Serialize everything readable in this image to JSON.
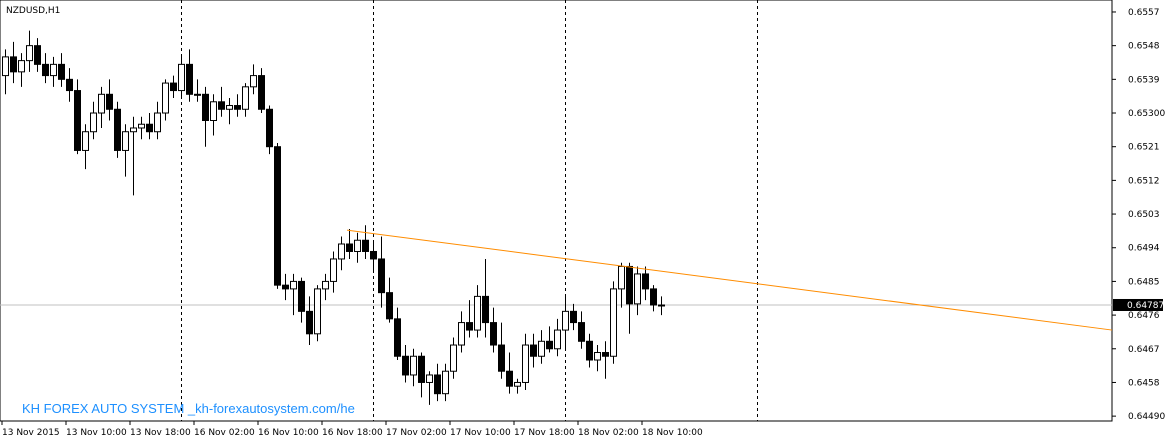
{
  "chart_data": {
    "type": "candlestick",
    "title": "NZDUSD,H1",
    "categories": [
      "13 Nov 2015",
      null,
      null,
      null,
      null,
      null,
      null,
      null,
      "13 Nov 10:00",
      null,
      null,
      null,
      null,
      null,
      null,
      null,
      "13 Nov 18:00",
      null,
      null,
      null,
      null,
      null,
      null,
      null,
      "16 Nov 02:00",
      null,
      null,
      null,
      null,
      null,
      null,
      null,
      "16 Nov 10:00",
      null,
      null,
      null,
      null,
      null,
      null,
      null,
      "16 Nov 18:00",
      null,
      null,
      null,
      null,
      null,
      null,
      null,
      "17 Nov 02:00",
      null,
      null,
      null,
      null,
      null,
      null,
      null,
      "17 Nov 10:00",
      null,
      null,
      null,
      null,
      null,
      null,
      null,
      "17 Nov 18:00",
      null,
      null,
      null,
      null,
      null,
      null,
      null,
      "18 Nov 02:00",
      null,
      null,
      null,
      null,
      null,
      null,
      null,
      "18 Nov 10:00",
      null,
      null
    ],
    "open": [
      0.654,
      0.6545,
      0.6541,
      0.6544,
      0.6548,
      0.6543,
      0.654,
      0.6543,
      0.6539,
      0.6536,
      0.652,
      0.6525,
      0.653,
      0.6535,
      0.6531,
      0.652,
      0.6525,
      0.6526,
      0.6527,
      0.6525,
      0.653,
      0.6538,
      0.6536,
      0.6543,
      0.6535,
      0.6535,
      0.6528,
      0.6533,
      0.6531,
      0.6532,
      0.6531,
      0.6537,
      0.654,
      0.6531,
      0.6521,
      0.6484,
      0.6483,
      0.6485,
      0.6477,
      0.6471,
      0.6483,
      0.6485,
      0.6491,
      0.6495,
      0.6493,
      0.6496,
      0.6493,
      0.6491,
      0.6482,
      0.6475,
      0.6465,
      0.646,
      0.6465,
      0.6458,
      0.646,
      0.6455,
      0.6461,
      0.6468,
      0.6474,
      0.6472,
      0.6481,
      0.6474,
      0.6468,
      0.6461,
      0.6457,
      0.6458,
      0.6468,
      0.6465,
      0.6469,
      0.6467,
      0.6472,
      0.6477,
      0.6474,
      0.6469,
      0.6464,
      0.6466,
      0.6465,
      0.6483,
      0.6489,
      0.6479,
      0.6487,
      0.6483,
      0.64787
    ],
    "high": [
      0.6547,
      0.6549,
      0.6546,
      0.6552,
      0.655,
      0.6546,
      0.6545,
      0.6546,
      0.6542,
      0.6539,
      0.6527,
      0.6533,
      0.6537,
      0.6539,
      0.6533,
      0.6527,
      0.6529,
      0.6529,
      0.653,
      0.6533,
      0.6539,
      0.654,
      0.6545,
      0.6547,
      0.6539,
      0.6537,
      0.6535,
      0.6537,
      0.6534,
      0.6535,
      0.6538,
      0.6543,
      0.6542,
      0.6532,
      0.6522,
      0.6487,
      0.6487,
      0.6486,
      0.6481,
      0.6484,
      0.6487,
      0.6493,
      0.6497,
      0.6499,
      0.6498,
      0.65,
      0.6496,
      0.6497,
      0.6486,
      0.6478,
      0.6468,
      0.6467,
      0.6466,
      0.6461,
      0.6463,
      0.6463,
      0.647,
      0.6477,
      0.648,
      0.6484,
      0.6491,
      0.6478,
      0.6474,
      0.6466,
      0.6459,
      0.6471,
      0.6471,
      0.6472,
      0.6473,
      0.6475,
      0.6481,
      0.6479,
      0.6477,
      0.6471,
      0.6468,
      0.6469,
      0.6485,
      0.649,
      0.649,
      0.6489,
      0.6489,
      0.6484,
      0.6481
    ],
    "low": [
      0.6535,
      0.6538,
      0.6537,
      0.6541,
      0.6541,
      0.6538,
      0.6537,
      0.6537,
      0.6533,
      0.6519,
      0.6515,
      0.6523,
      0.6526,
      0.6528,
      0.6518,
      0.6513,
      0.6508,
      0.6523,
      0.6523,
      0.6523,
      0.6528,
      0.6534,
      0.6534,
      0.6533,
      0.6533,
      0.6521,
      0.6524,
      0.6529,
      0.6527,
      0.6529,
      0.6529,
      0.6535,
      0.653,
      0.6519,
      0.6483,
      0.648,
      0.6476,
      0.6474,
      0.6468,
      0.6469,
      0.648,
      0.6482,
      0.6488,
      0.6491,
      0.649,
      0.6491,
      0.6488,
      0.6478,
      0.6474,
      0.6464,
      0.6458,
      0.6457,
      0.6454,
      0.6452,
      0.6453,
      0.6453,
      0.6459,
      0.6466,
      0.647,
      0.647,
      0.647,
      0.6466,
      0.6459,
      0.6455,
      0.6455,
      0.6456,
      0.6462,
      0.6463,
      0.6466,
      0.6465,
      0.6467,
      0.6472,
      0.6467,
      0.6462,
      0.6461,
      0.6459,
      0.6463,
      0.6478,
      0.6471,
      0.6476,
      0.648,
      0.6477,
      0.6476
    ],
    "close": [
      0.6545,
      0.6541,
      0.6544,
      0.6548,
      0.6543,
      0.654,
      0.6543,
      0.6539,
      0.6536,
      0.652,
      0.6525,
      0.653,
      0.6535,
      0.6531,
      0.652,
      0.6525,
      0.6526,
      0.6527,
      0.6525,
      0.653,
      0.6538,
      0.6536,
      0.6543,
      0.6535,
      0.6535,
      0.6528,
      0.6533,
      0.6531,
      0.6532,
      0.6531,
      0.6537,
      0.654,
      0.6531,
      0.6521,
      0.6484,
      0.6483,
      0.6485,
      0.6477,
      0.6471,
      0.6483,
      0.6485,
      0.6491,
      0.6495,
      0.6493,
      0.6496,
      0.6493,
      0.6491,
      0.6482,
      0.6475,
      0.6465,
      0.646,
      0.6465,
      0.6458,
      0.646,
      0.6455,
      0.6461,
      0.6468,
      0.6474,
      0.6472,
      0.6481,
      0.6474,
      0.6468,
      0.6461,
      0.6457,
      0.6458,
      0.6468,
      0.6465,
      0.6469,
      0.6467,
      0.6472,
      0.6477,
      0.6474,
      0.6469,
      0.6464,
      0.6466,
      0.6465,
      0.6483,
      0.6489,
      0.6479,
      0.6487,
      0.6483,
      0.64787,
      0.64787
    ],
    "up_color": "#ffffff",
    "down_color": "#000000",
    "outline_color": "#000000",
    "xlim": [
      -0.625,
      138.375
    ],
    "ylim": [
      0.64477,
      0.65602
    ],
    "yticks": [
      {
        "value": 0.6449,
        "label": "0.64490"
      },
      0.6458,
      0.6467,
      0.6476,
      0.6485,
      0.6494,
      0.6503,
      0.6512,
      0.6521,
      {
        "value": 0.653,
        "label": "0.65300"
      },
      0.6539,
      0.6548,
      0.6557
    ],
    "period_separators": [
      22,
      46,
      70,
      94
    ],
    "current_price": {
      "value": 0.64787,
      "label": "0.64787"
    },
    "trendline": {
      "x": [
        42.75,
        138.375
      ],
      "y": [
        0.64987,
        0.6472
      ],
      "color": "#ff8c00"
    },
    "annotation": "KH FOREX AUTO SYSTEM _kh-forexautosystem.com/he"
  }
}
